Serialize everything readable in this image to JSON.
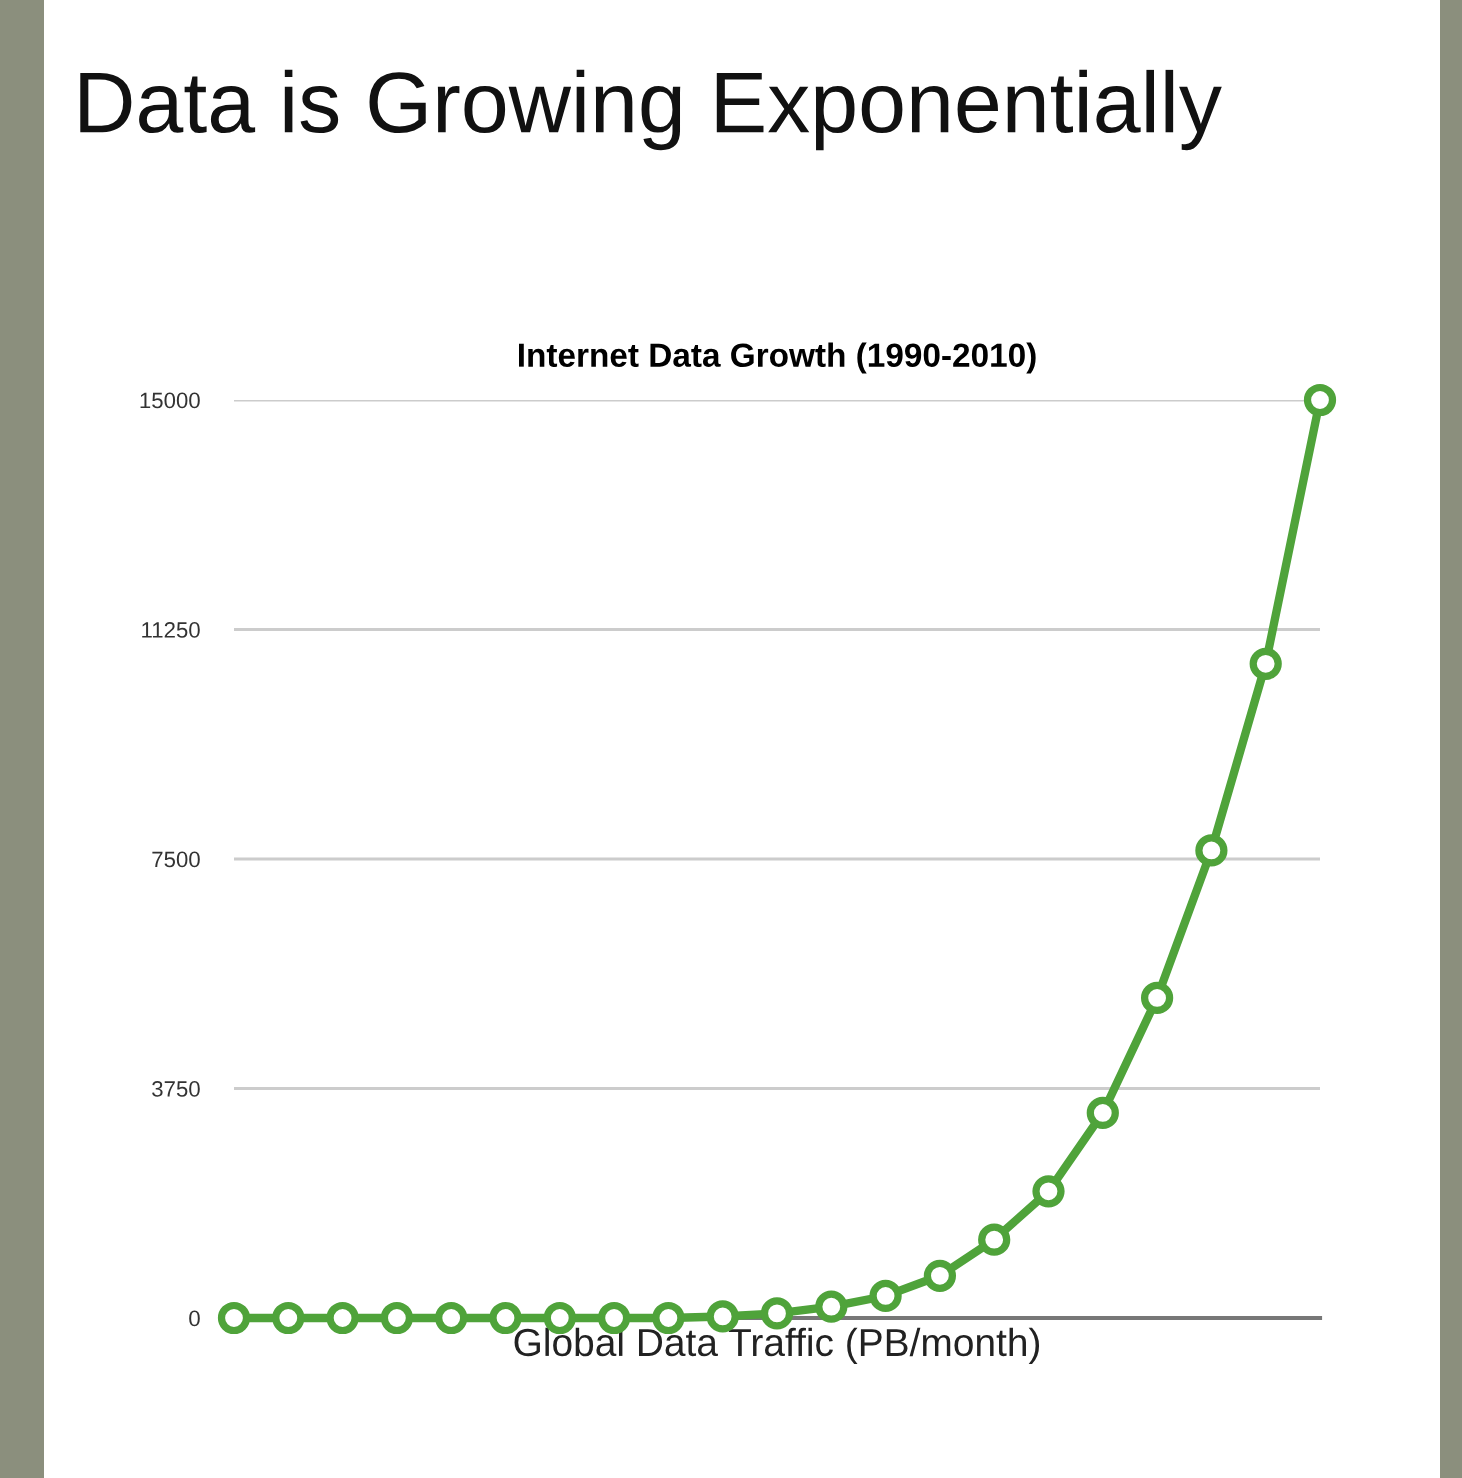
{
  "chart_data": {
    "type": "line",
    "title": "Internet Data Growth (1990-2010)",
    "subtitle": "Data is Growing Exponentially",
    "xlabel": "Global Data Traffic (PB/month)",
    "categories": [
      null,
      null,
      null,
      null,
      null,
      null,
      null,
      null,
      null,
      null,
      null,
      null,
      null,
      null,
      null,
      null,
      null,
      null,
      null,
      null,
      null
    ],
    "series": [
      {
        "color": "#4fa33a",
        "values": [
          0,
          0,
          0,
          0,
          0,
          0,
          0,
          0,
          0,
          25,
          75,
          185,
          360,
          690,
          1280,
          2070,
          3350,
          5230,
          7640,
          10690,
          15000
        ]
      }
    ],
    "ylim": [
      0,
      15000
    ],
    "yticks": [
      0,
      3750,
      7500,
      11250,
      15000
    ],
    "grid": "y",
    "marker": "circle",
    "line_style": "solid"
  }
}
